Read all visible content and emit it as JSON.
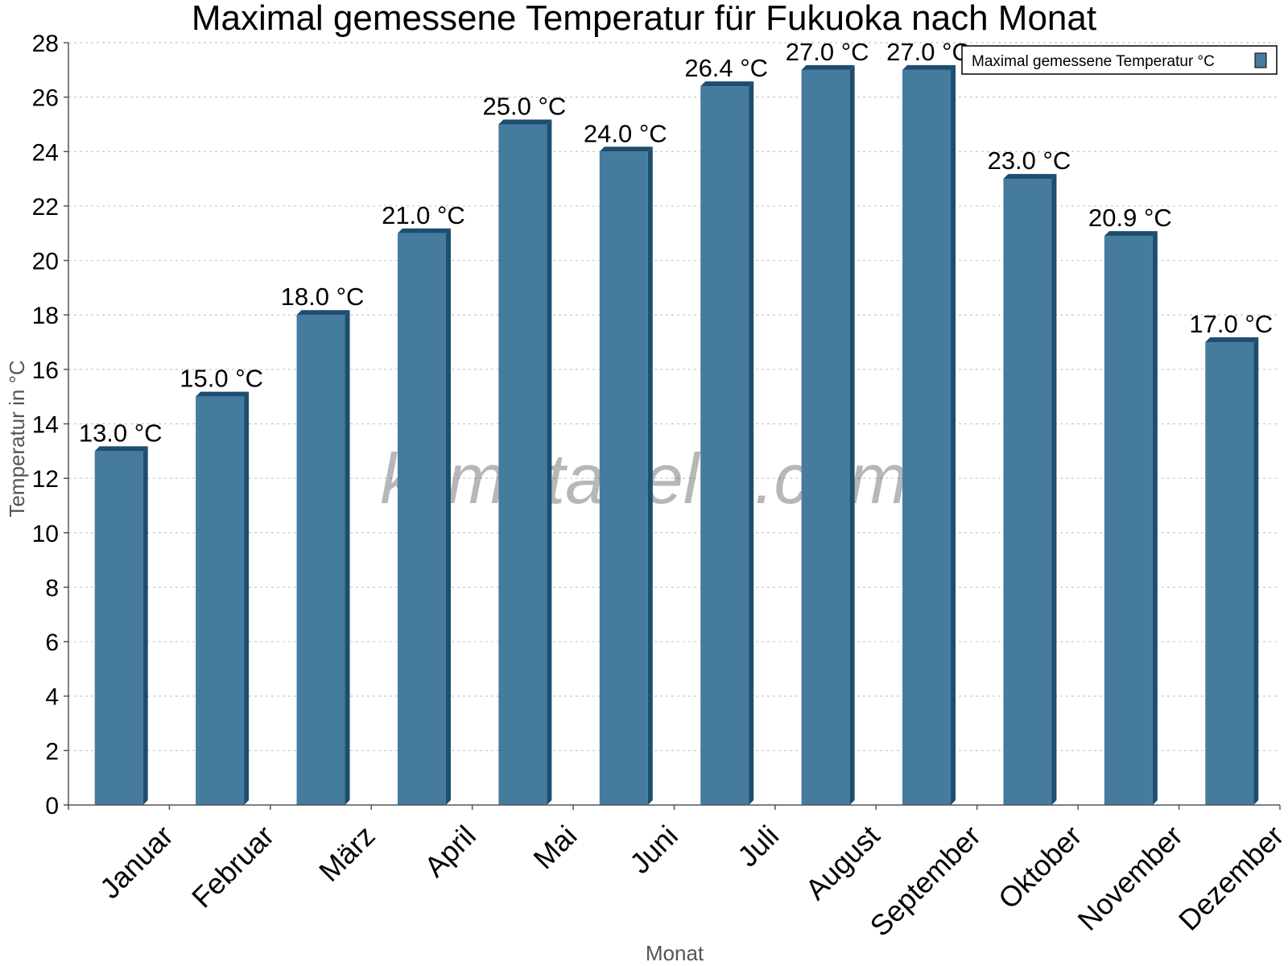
{
  "chart_data": {
    "type": "bar",
    "title": "Maximal gemessene Temperatur für Fukuoka nach Monat",
    "xlabel": "Monat",
    "ylabel": "Temperatur in °C",
    "categories": [
      "Januar",
      "Februar",
      "März",
      "April",
      "Mai",
      "Juni",
      "Juli",
      "August",
      "September",
      "Oktober",
      "November",
      "Dezember"
    ],
    "series": [
      {
        "name": "Maximal gemessene Temperatur °C",
        "values": [
          13.0,
          15.0,
          18.0,
          21.0,
          25.0,
          24.0,
          26.4,
          27.0,
          27.0,
          23.0,
          20.9,
          17.0
        ]
      }
    ],
    "value_labels": [
      "13.0 °C",
      "15.0 °C",
      "18.0 °C",
      "21.0 °C",
      "25.0 °C",
      "24.0 °C",
      "26.4 °C",
      "27.0 °C",
      "27.0 °C",
      "23.0 °C",
      "20.9 °C",
      "17.0 °C"
    ],
    "yticks": [
      0,
      2,
      4,
      6,
      8,
      10,
      12,
      14,
      16,
      18,
      20,
      22,
      24,
      26,
      28
    ],
    "ylim": [
      0,
      28
    ],
    "grid": true,
    "legend_position": "top-right",
    "watermark": "klimatabelle.com",
    "colors": {
      "bar": "#457b9d",
      "bar_side": "#1d4e70",
      "bar_top": "#1d4e70",
      "grid": "#c8c8c8",
      "axis": "#555555"
    }
  }
}
